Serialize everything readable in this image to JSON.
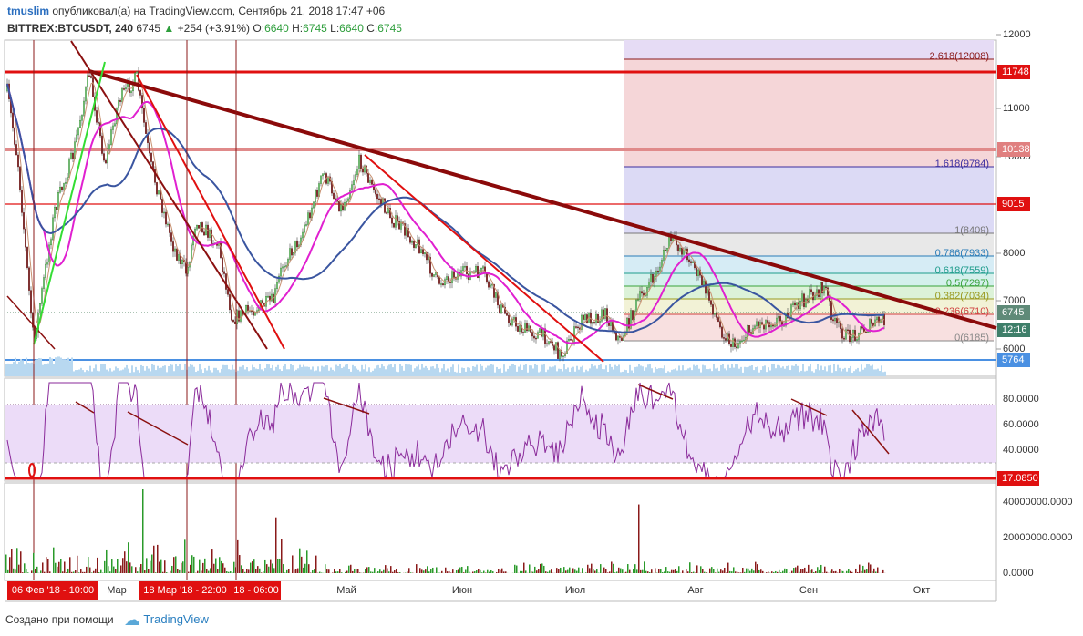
{
  "header": {
    "user": "tmuslim",
    "published": "опубликовал(а) на TradingView.com, Сентябрь 21, 2018 17:47 +06",
    "symbol": "BITTREX:BTCUSDT, 240",
    "last": "6745",
    "change": "+254 (+3.91%)",
    "open_label": "O:",
    "open": "6640",
    "high_label": "H:",
    "high": "6745",
    "low_label": "L:",
    "low": "6640",
    "close_label": "C:",
    "close": "6745"
  },
  "price_axis": {
    "ticks": [
      "12000",
      "11000",
      "10000",
      "8000",
      "7000",
      "6000"
    ],
    "markers": [
      "11748",
      "10138",
      "9015",
      "6745",
      "12:16",
      "5764"
    ]
  },
  "fib_levels": [
    "2.618(12008)",
    "1.618(9784)",
    "1(8409)",
    "0.786(7933)",
    "0.618(7559)",
    "0.5(7297)",
    "0.382(7034)",
    "0.236(6710)",
    "0(6185)"
  ],
  "rsi_axis": {
    "ticks": [
      "80.0000",
      "60.0000",
      "40.0000"
    ],
    "marker": "17.0850"
  },
  "volume_axis": {
    "ticks": [
      "40000000.0000",
      "20000000.0000",
      "0.0000"
    ]
  },
  "time_axis": {
    "labels": [
      "Мар",
      "Май",
      "Июн",
      "Июл",
      "Авг",
      "Сен",
      "Окт"
    ],
    "cursor_labels": [
      "06 Фев '18 - 10:00",
      "18 Мар '18 - 22:00",
      "18 - 06:00"
    ]
  },
  "footer": {
    "made_with": "Создано при помощи",
    "brand": "TradingView"
  }
}
